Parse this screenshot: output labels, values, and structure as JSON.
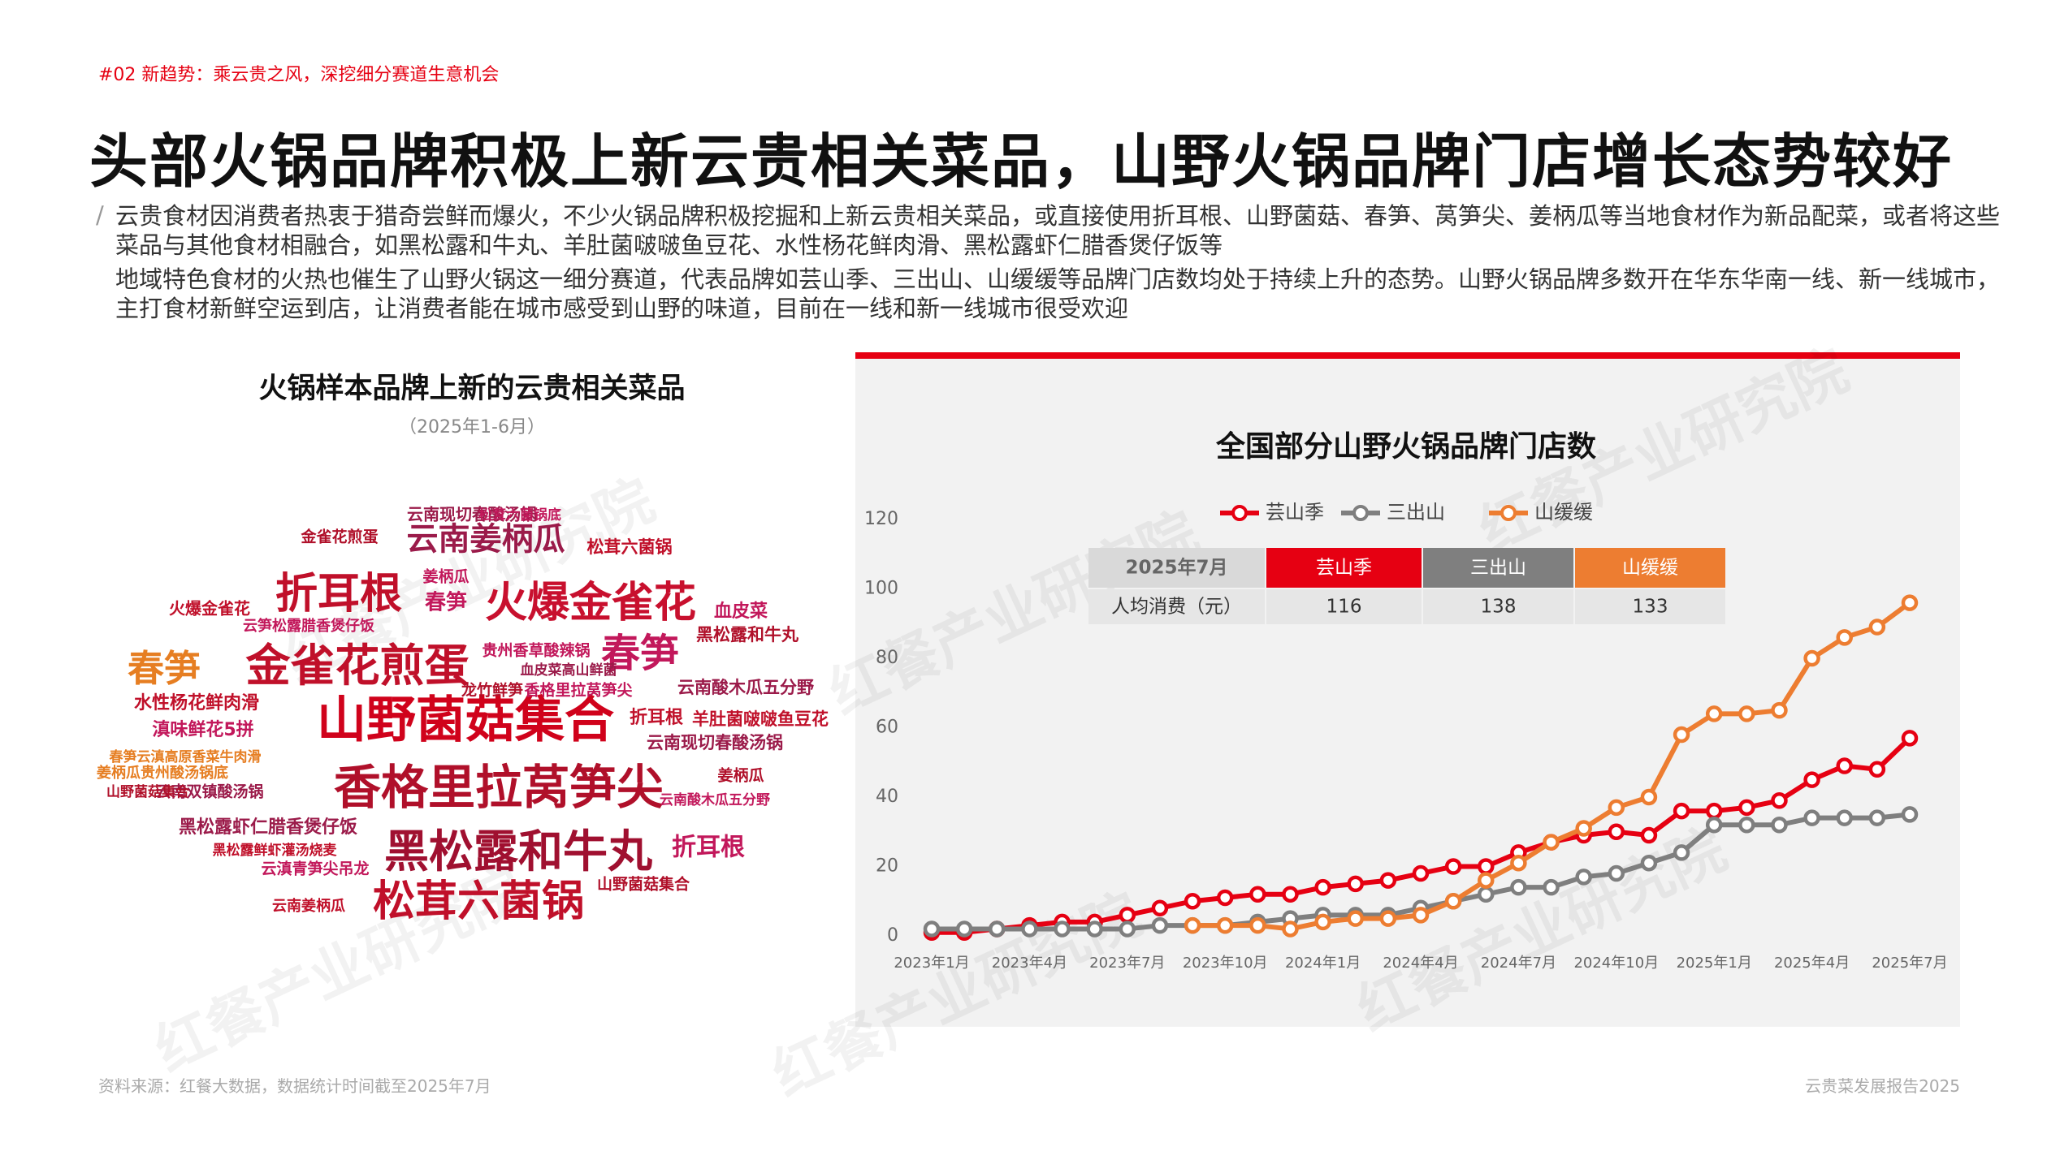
{
  "header": {
    "tag": "#02 新趋势：乘云贵之风，深挖细分赛道生意机会",
    "title": "头部火锅品牌积极上新云贵相关菜品，山野火锅品牌门店增长态势较好"
  },
  "paragraphs": [
    "云贵食材因消费者热衷于猎奇尝鲜而爆火，不少火锅品牌积极挖掘和上新云贵相关菜品，或直接使用折耳根、山野菌菇、春笋、莴笋尖、姜柄瓜等当地食材作为新品配菜，或者将这些菜品与其他食材相融合，如黑松露和牛丸、羊肚菌啵啵鱼豆花、水性杨花鲜肉滑、黑松露虾仁腊香煲仔饭等",
    "地域特色食材的火热也催生了山野火锅这一细分赛道，代表品牌如芸山季、三出山、山缓缓等品牌门店数均处于持续上升的态势。山野火锅品牌多数开在华东华南一线、新一线城市，主打食材新鲜空运到店，让消费者能在城市感受到山野的味道，目前在一线和新一线城市很受欢迎"
  ],
  "wordcloud": {
    "title": "火锅样本品牌上新的云贵相关菜品",
    "subtitle": "（2025年1-6月）",
    "words": [
      "山野菌菇集合",
      "香格里拉莴笋尖",
      "黑松露和牛丸",
      "松茸六菌锅",
      "火爆金雀花",
      "金雀花煎蛋",
      "春笋",
      "折耳根",
      "云南姜柄瓜",
      "春笋",
      "春笋",
      "折耳根",
      "血皮菜",
      "黑松露和牛丸",
      "云南酸木瓜五分野",
      "羊肚菌啵啵鱼豆花",
      "云南现切春酸汤锅",
      "水性杨花鲜肉滑",
      "滇味鲜花5拼",
      "黑松露虾仁腊香煲仔饭",
      "贵州香草酸辣锅",
      "火爆金雀花",
      "云南现切春酸汤锅",
      "松茸六菌锅",
      "姜柄瓜",
      "龙竹鲜笋",
      "香格里拉莴笋尖",
      "山野菌菇集合",
      "云滇青笋尖吊龙",
      "云南姜柄瓜",
      "姜柄瓜",
      "折耳根",
      "金雀花煎蛋",
      "云笋松露腊香煲仔饭",
      "云南双镇酸汤锅",
      "姜柄瓜贵州酸汤锅底",
      "春笋云滇高原香菜牛肉滑",
      "黑松露鲜虾灌汤烧麦",
      "血皮菜高山鲜菌",
      "云南酸木瓜五分野",
      "山野菌菇集合",
      "松茸六菌锅底"
    ]
  },
  "chart_data": {
    "type": "line",
    "title": "全国部分山野火锅品牌门店数",
    "categories": [
      "2023年1月",
      null,
      null,
      "2023年4月",
      null,
      null,
      "2023年7月",
      null,
      null,
      "2023年10月",
      null,
      null,
      "2024年1月",
      null,
      null,
      "2024年4月",
      null,
      null,
      "2024年7月",
      null,
      null,
      "2024年10月",
      null,
      null,
      "2025年1月",
      null,
      null,
      "2025年4月",
      null,
      null,
      "2025年7月"
    ],
    "series": [
      {
        "name": "芸山季",
        "color": "#e60012",
        "values": [
          1,
          1,
          2,
          3,
          4,
          4,
          6,
          8,
          10,
          11,
          12,
          12,
          14,
          15,
          16,
          18,
          20,
          20,
          24,
          27,
          29,
          30,
          29,
          36,
          36,
          37,
          39,
          45,
          49,
          48,
          57
        ]
      },
      {
        "name": "三出山",
        "color": "#7f7f7f",
        "values": [
          2,
          2,
          2,
          2,
          2,
          2,
          2,
          3,
          3,
          3,
          4,
          5,
          6,
          6,
          6,
          8,
          10,
          12,
          14,
          14,
          17,
          18,
          21,
          24,
          32,
          32,
          32,
          34,
          34,
          34,
          35
        ]
      },
      {
        "name": "山缓缓",
        "color": "#ed7d31",
        "values": [
          null,
          null,
          null,
          null,
          null,
          null,
          null,
          null,
          3,
          3,
          3,
          2,
          4,
          5,
          5,
          6,
          10,
          16,
          21,
          27,
          31,
          37,
          40,
          58,
          64,
          64,
          65,
          80,
          86,
          89,
          96
        ]
      }
    ],
    "ylim": [
      0,
      120
    ],
    "yticks": [
      0,
      20,
      40,
      60,
      80,
      100,
      120
    ],
    "legend": "top",
    "grid": false
  },
  "table": {
    "header": [
      "2025年7月",
      "芸山季",
      "三出山",
      "山缓缓"
    ],
    "rows": [
      [
        "人均消费（元）",
        116,
        138,
        133
      ]
    ]
  },
  "watermark": "红餐产业研究院",
  "footer": {
    "source": "资料来源：红餐大数据，数据统计时间截至2025年7月",
    "report": "云贵菜发展报告2025"
  }
}
